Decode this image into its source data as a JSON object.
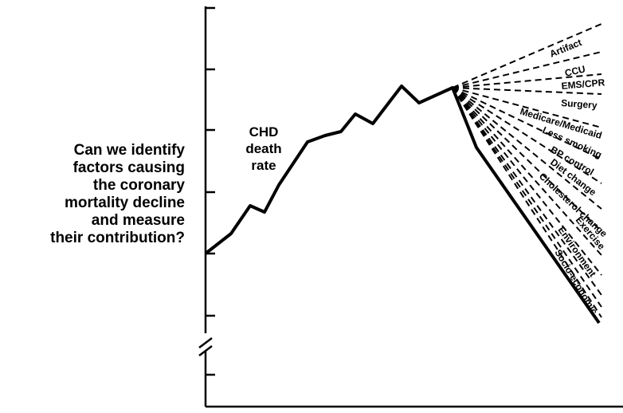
{
  "question": {
    "lines": [
      "Can we identify",
      "factors causing",
      "the coronary",
      "mortality decline",
      "and measure",
      "their contribution?"
    ]
  },
  "curve_label": {
    "lines": [
      "CHD",
      "death",
      "rate"
    ]
  },
  "factors": [
    "Artifact",
    "CCU",
    "EMS/CPR",
    "Surgery",
    "Medicare/Medicaid",
    "Less smoking",
    "BP control",
    "Diet change",
    "Cholesterol change",
    "Exercise",
    "Environment",
    "Socio-economic"
  ]
}
